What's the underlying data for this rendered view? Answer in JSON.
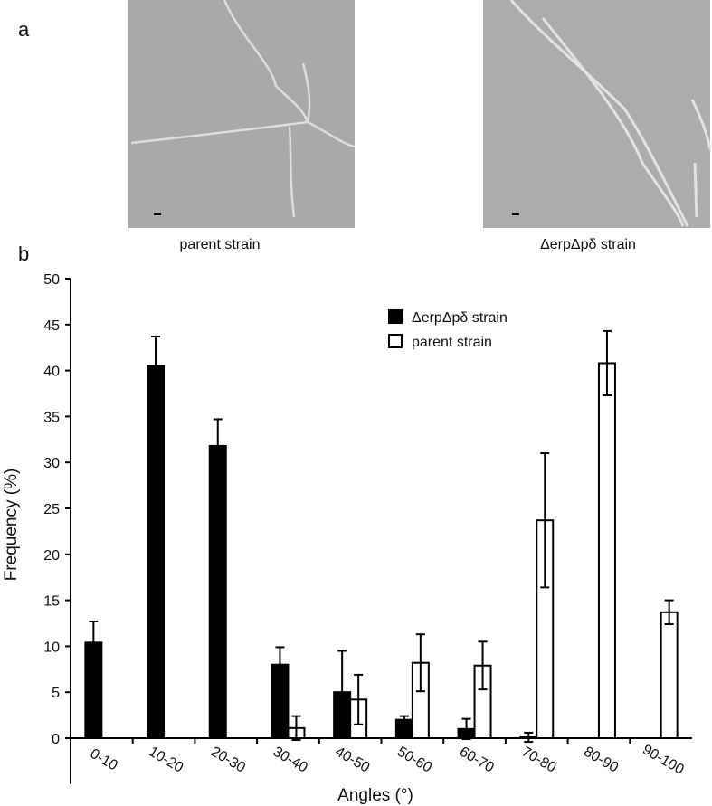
{
  "panel_a": {
    "label": "a",
    "captions": [
      "parent strain",
      "ΔerpΔpδ strain"
    ]
  },
  "panel_b": {
    "label": "b"
  },
  "chart_data": {
    "type": "bar",
    "x_label": "Angles (°)",
    "y_label": "Frequency (%)",
    "categories": [
      "0-10",
      "10-20",
      "20-30",
      "30-40",
      "40-50",
      "50-60",
      "60-70",
      "70-80",
      "80-90",
      "90-100"
    ],
    "series": [
      {
        "name": "ΔerpΔpδ strain",
        "color": "#000000",
        "values": [
          10.4,
          40.5,
          31.8,
          8,
          5,
          2,
          1,
          0.1,
          0,
          0
        ],
        "errors": [
          2.3,
          3.2,
          2.9,
          1.9,
          4.5,
          0.4,
          1.1,
          0.5,
          null,
          null
        ]
      },
      {
        "name": "parent strain",
        "color": "#ffffff",
        "values": [
          0,
          0,
          0,
          1.1,
          4.2,
          8.2,
          7.9,
          23.7,
          40.8,
          13.7
        ],
        "errors": [
          null,
          null,
          null,
          1.3,
          2.7,
          3.1,
          2.6,
          7.3,
          3.5,
          1.3
        ]
      }
    ],
    "ylim": [
      -5,
      50
    ],
    "yticks": [
      0,
      5,
      10,
      15,
      20,
      25,
      30,
      35,
      40,
      45,
      50
    ]
  }
}
